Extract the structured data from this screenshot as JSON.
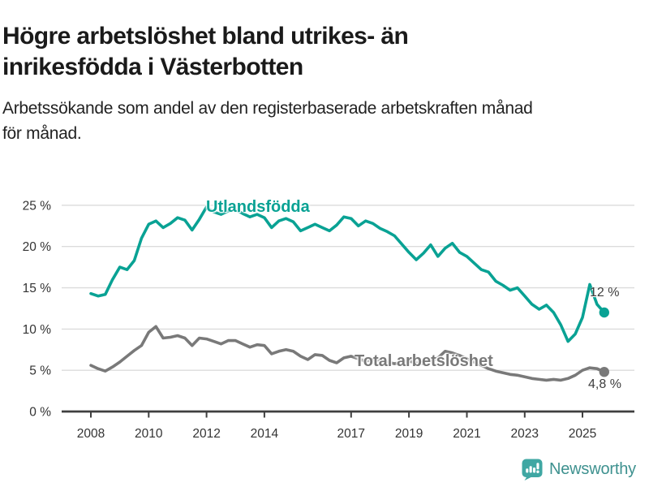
{
  "header": {
    "title_lines": [
      "Högre arbetslöshet bland utrikes- än",
      "inrikesfödda i Västerbotten"
    ],
    "subtitle_lines": [
      "Arbetssökande som andel av den registerbaserade arbetskraften månad",
      "för månad."
    ]
  },
  "chart_data": {
    "type": "line",
    "title": "Högre arbetslöshet bland utrikes- än inrikesfödda i Västerbotten",
    "subtitle": "Arbetssökande som andel av den registerbaserade arbetskraften månad för månad.",
    "xlabel": "",
    "ylabel": "",
    "ylim": [
      0,
      25
    ],
    "xlim": [
      2008,
      2025.75
    ],
    "grid": "horizontal",
    "x_start": 2008,
    "x_step_years": 0.25,
    "y_axis": {
      "ticks": [
        {
          "value": 0,
          "label": "0 %"
        },
        {
          "value": 5,
          "label": "5 %"
        },
        {
          "value": 10,
          "label": "10 %"
        },
        {
          "value": 15,
          "label": "15 %"
        },
        {
          "value": 20,
          "label": "20 %"
        },
        {
          "value": 25,
          "label": "25 %"
        }
      ]
    },
    "x_axis": {
      "ticks": [
        {
          "value": 2008,
          "label": "2008"
        },
        {
          "value": 2010,
          "label": "2010"
        },
        {
          "value": 2012,
          "label": "2012"
        },
        {
          "value": 2014,
          "label": "2014"
        },
        {
          "value": 2017,
          "label": "2017"
        },
        {
          "value": 2019,
          "label": "2019"
        },
        {
          "value": 2021,
          "label": "2021"
        },
        {
          "value": 2023,
          "label": "2023"
        },
        {
          "value": 2025,
          "label": "2025"
        }
      ]
    },
    "series": [
      {
        "name": "Utlandsfödda",
        "color": "#09a294",
        "end_label": "12 %",
        "end_value": 12.0,
        "values": [
          14.3,
          14.0,
          14.2,
          16.0,
          17.5,
          17.2,
          18.3,
          21.0,
          22.7,
          23.1,
          22.3,
          22.8,
          23.5,
          23.2,
          22.0,
          23.3,
          24.8,
          24.2,
          23.9,
          24.3,
          24.5,
          24.0,
          23.6,
          23.9,
          23.5,
          22.3,
          23.1,
          23.4,
          23.0,
          21.9,
          22.3,
          22.7,
          22.3,
          21.9,
          22.6,
          23.6,
          23.4,
          22.5,
          23.1,
          22.8,
          22.2,
          21.8,
          21.3,
          20.3,
          19.3,
          18.4,
          19.2,
          20.2,
          18.8,
          19.8,
          20.4,
          19.3,
          18.8,
          18.0,
          17.2,
          16.9,
          15.8,
          15.3,
          14.7,
          15.0,
          14.0,
          13.0,
          12.4,
          12.9,
          12.0,
          10.5,
          8.5,
          9.4,
          11.4,
          15.4,
          13.0,
          12.0
        ]
      },
      {
        "name": "Total arbetslöshet",
        "color": "#797979",
        "end_label": "4,8 %",
        "end_value": 4.8,
        "values": [
          5.6,
          5.2,
          4.9,
          5.4,
          6.0,
          6.7,
          7.4,
          8.0,
          9.6,
          10.3,
          8.9,
          9.0,
          9.2,
          8.9,
          8.0,
          8.9,
          8.8,
          8.5,
          8.2,
          8.6,
          8.6,
          8.2,
          7.8,
          8.1,
          8.0,
          7.0,
          7.3,
          7.5,
          7.3,
          6.7,
          6.3,
          6.9,
          6.8,
          6.2,
          5.9,
          6.5,
          6.7,
          6.4,
          6.1,
          6.3,
          6.2,
          6.0,
          5.8,
          6.0,
          6.1,
          5.9,
          5.8,
          6.1,
          6.5,
          7.3,
          7.1,
          6.8,
          6.4,
          6.0,
          5.6,
          5.2,
          4.9,
          4.7,
          4.5,
          4.4,
          4.2,
          4.0,
          3.9,
          3.8,
          3.9,
          3.8,
          4.0,
          4.4,
          5.0,
          5.3,
          5.2,
          4.8
        ]
      }
    ],
    "colors": {
      "grid": "#dcdcdc",
      "axis": "#3f3f3f",
      "tick_label": "#333333"
    }
  },
  "footer": {
    "brand": "Newsworthy"
  }
}
